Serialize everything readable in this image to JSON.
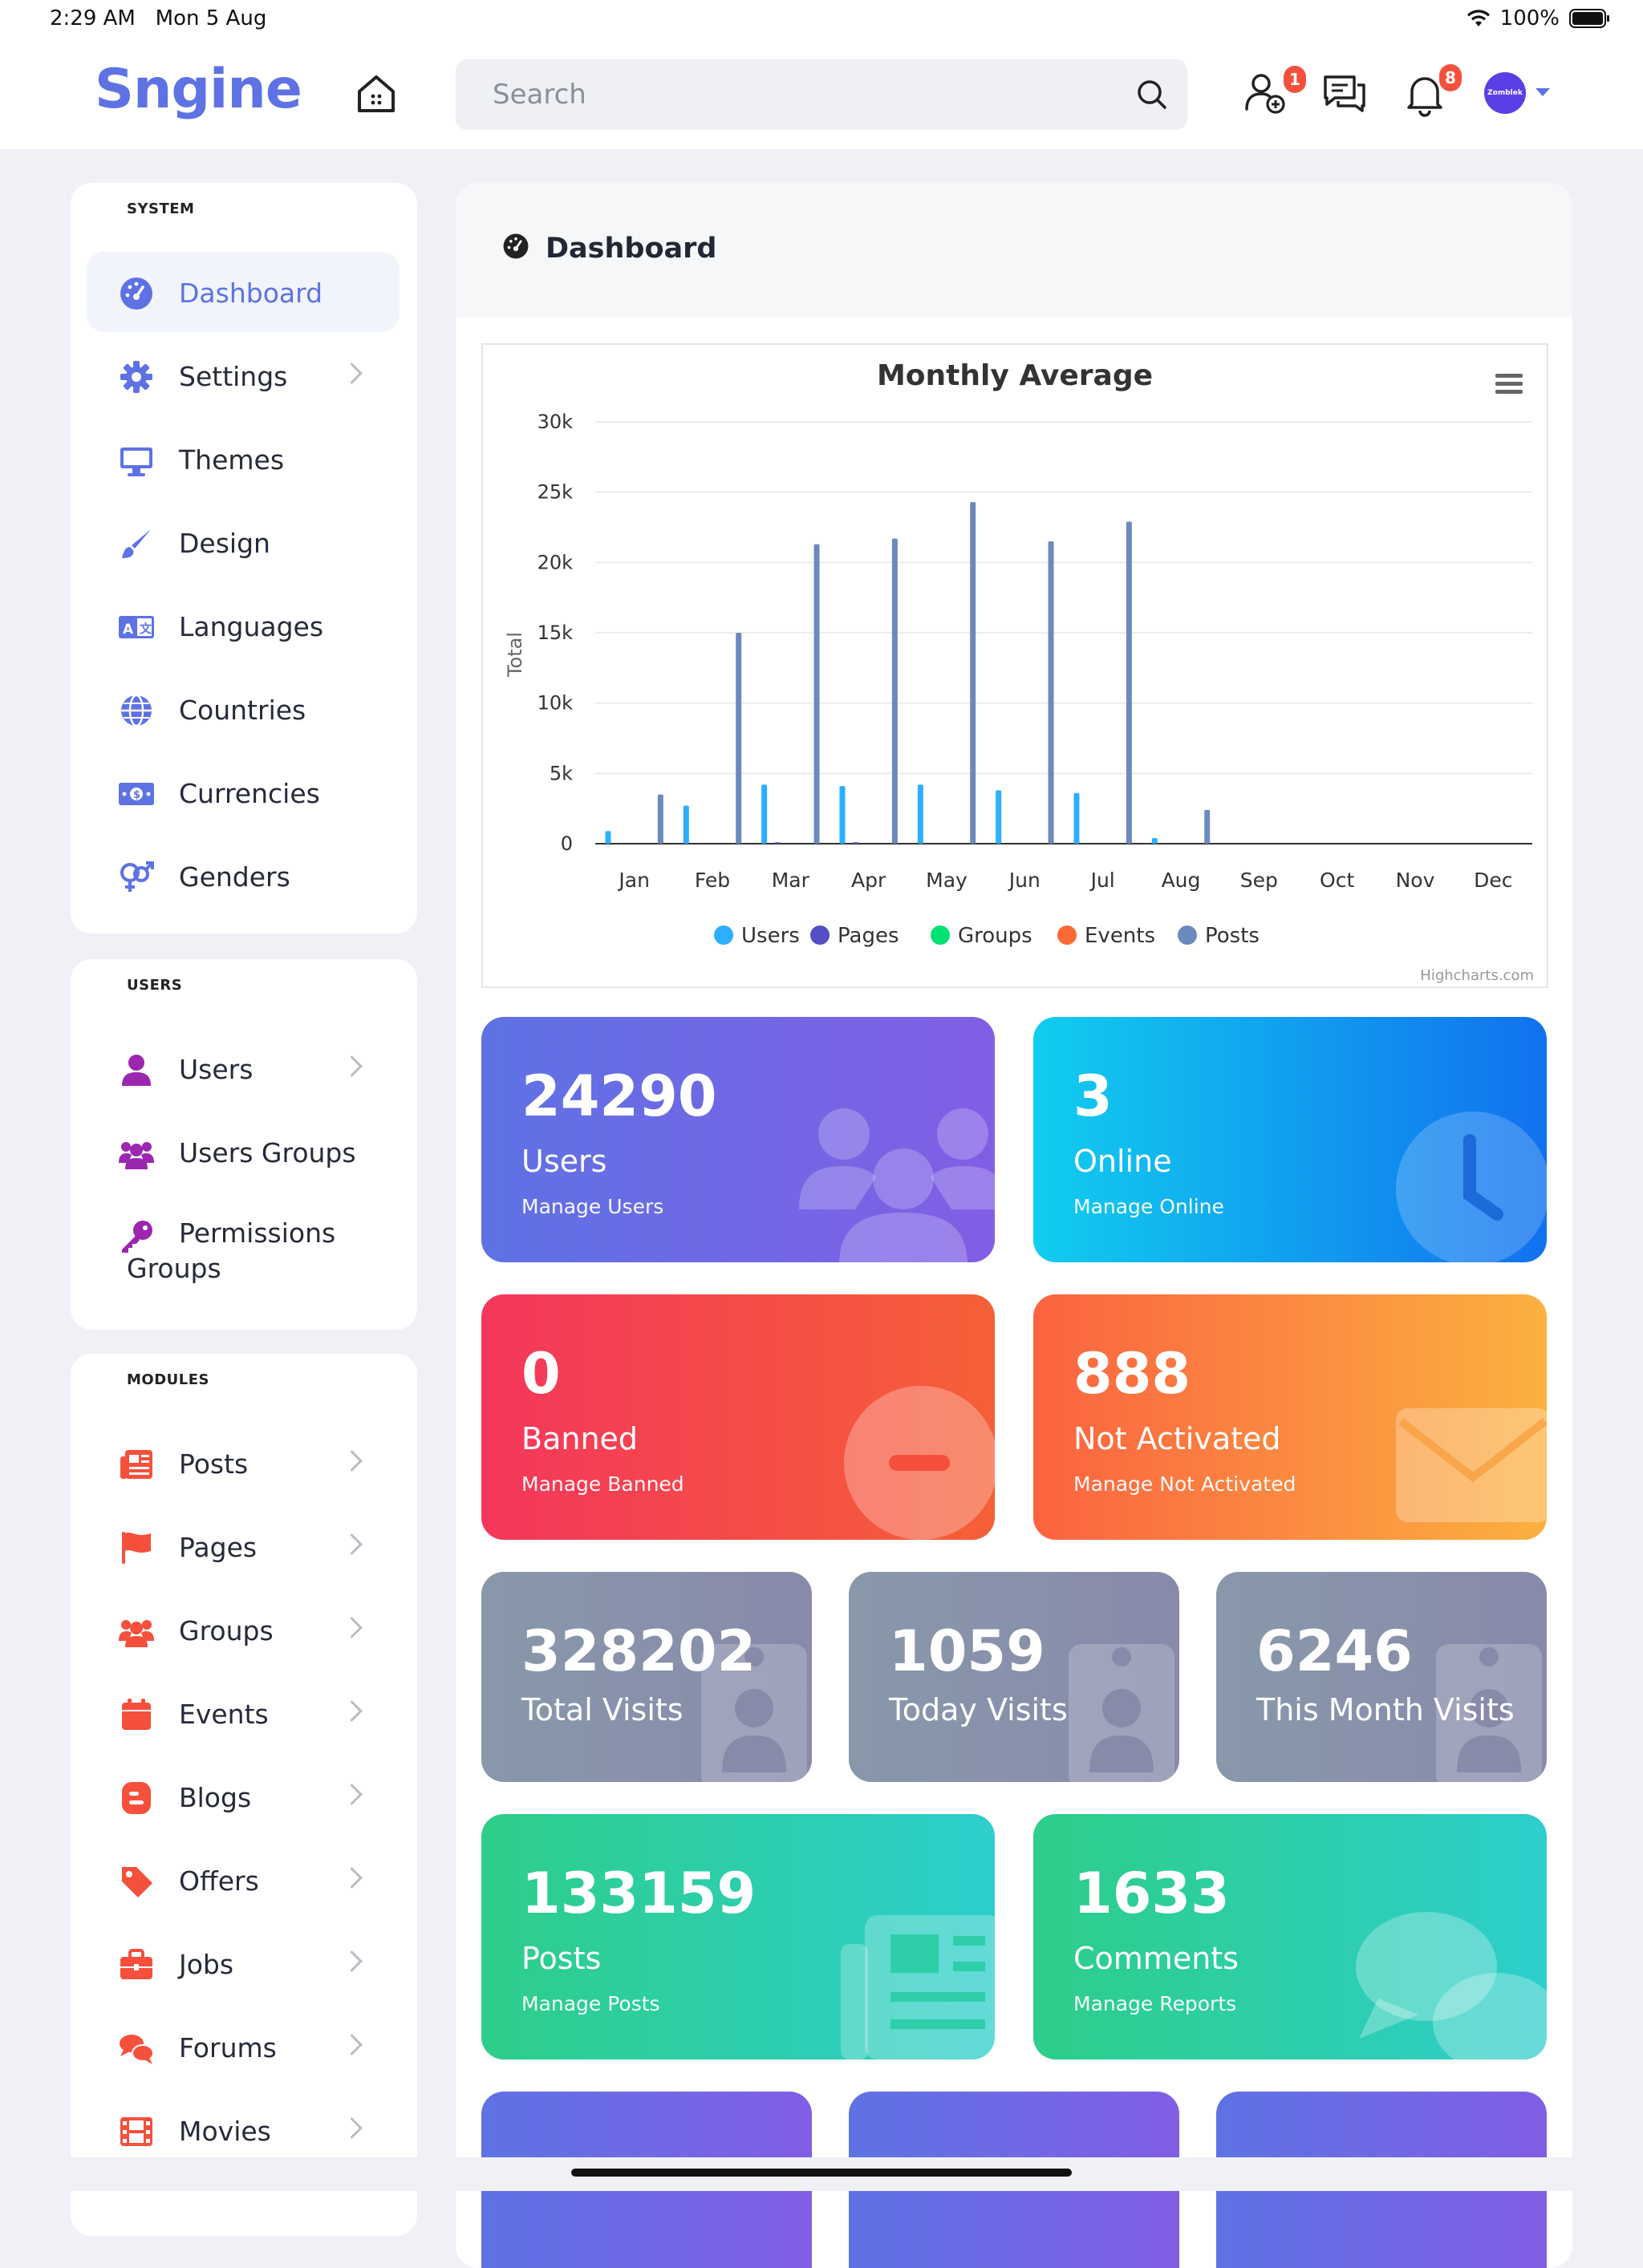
{
  "status": {
    "time": "2:29 AM",
    "date": "Mon 5 Aug",
    "battery": "100%"
  },
  "header": {
    "logo": "Sngine",
    "search_placeholder": "Search",
    "friend_badge": "1",
    "notif_badge": "8",
    "avatar_label": "Zomblek",
    "accent": "#5e72e4"
  },
  "sidebar": {
    "system": {
      "title": "SYSTEM",
      "items": [
        {
          "label": "Dashboard",
          "icon": "gauge-icon"
        },
        {
          "label": "Settings",
          "icon": "gear-icon"
        },
        {
          "label": "Themes",
          "icon": "monitor-icon"
        },
        {
          "label": "Design",
          "icon": "brush-icon"
        },
        {
          "label": "Languages",
          "icon": "language-icon"
        },
        {
          "label": "Countries",
          "icon": "globe-icon"
        },
        {
          "label": "Currencies",
          "icon": "money-icon"
        },
        {
          "label": "Genders",
          "icon": "gender-icon"
        }
      ]
    },
    "users": {
      "title": "USERS",
      "items": [
        {
          "label": "Users",
          "icon": "user-icon"
        },
        {
          "label": "Users Groups",
          "icon": "users-icon"
        },
        {
          "label": "Permissions Groups",
          "icon": "key-icon"
        }
      ]
    },
    "modules": {
      "title": "MODULES",
      "items": [
        {
          "label": "Posts",
          "icon": "newspaper-icon"
        },
        {
          "label": "Pages",
          "icon": "flag-icon"
        },
        {
          "label": "Groups",
          "icon": "group-icon"
        },
        {
          "label": "Events",
          "icon": "calendar-icon"
        },
        {
          "label": "Blogs",
          "icon": "blog-icon"
        },
        {
          "label": "Offers",
          "icon": "tag-icon"
        },
        {
          "label": "Jobs",
          "icon": "briefcase-icon"
        },
        {
          "label": "Forums",
          "icon": "forum-icon"
        },
        {
          "label": "Movies",
          "icon": "film-icon"
        }
      ]
    }
  },
  "main": {
    "title": "Dashboard"
  },
  "chart_data": {
    "type": "bar",
    "title": "Monthly Average",
    "ylabel": "Total",
    "categories": [
      "Jan",
      "Feb",
      "Mar",
      "Apr",
      "May",
      "Jun",
      "Jul",
      "Aug",
      "Sep",
      "Oct",
      "Nov",
      "Dec"
    ],
    "ylim": [
      0,
      30000
    ],
    "yticks": [
      "0",
      "5k",
      "10k",
      "15k",
      "20k",
      "25k",
      "30k"
    ],
    "series": [
      {
        "name": "Users",
        "color": "#2caffe",
        "values": [
          900,
          2700,
          4200,
          4100,
          4200,
          3800,
          3600,
          400,
          0,
          0,
          0,
          0
        ]
      },
      {
        "name": "Pages",
        "color": "#544fc5",
        "values": [
          0,
          0,
          100,
          100,
          0,
          0,
          0,
          0,
          0,
          0,
          0,
          0
        ]
      },
      {
        "name": "Groups",
        "color": "#00e272",
        "values": [
          0,
          0,
          0,
          0,
          0,
          0,
          0,
          0,
          0,
          0,
          0,
          0
        ]
      },
      {
        "name": "Events",
        "color": "#fe6a35",
        "values": [
          0,
          0,
          0,
          0,
          0,
          0,
          0,
          0,
          0,
          0,
          0,
          0
        ]
      },
      {
        "name": "Posts",
        "color": "#6b8abc",
        "values": [
          3500,
          15000,
          21300,
          21700,
          24300,
          21500,
          22900,
          2400,
          0,
          0,
          0,
          0
        ]
      }
    ],
    "credits": "Highcharts.com",
    "legend": "bottom"
  },
  "cards": {
    "users": {
      "num": "24290",
      "label": "Users",
      "sub": "Manage Users"
    },
    "online": {
      "num": "3",
      "label": "Online",
      "sub": "Manage Online"
    },
    "banned": {
      "num": "0",
      "label": "Banned",
      "sub": "Manage Banned"
    },
    "notact": {
      "num": "888",
      "label": "Not Activated",
      "sub": "Manage Not Activated"
    },
    "total_visits": {
      "num": "328202",
      "label": "Total Visits"
    },
    "today_visits": {
      "num": "1059",
      "label": "Today Visits"
    },
    "month_visits": {
      "num": "6246",
      "label": "This Month Visits"
    },
    "posts": {
      "num": "133159",
      "label": "Posts",
      "sub": "Manage Posts"
    },
    "comments": {
      "num": "1633",
      "label": "Comments",
      "sub": "Manage Reports"
    }
  }
}
